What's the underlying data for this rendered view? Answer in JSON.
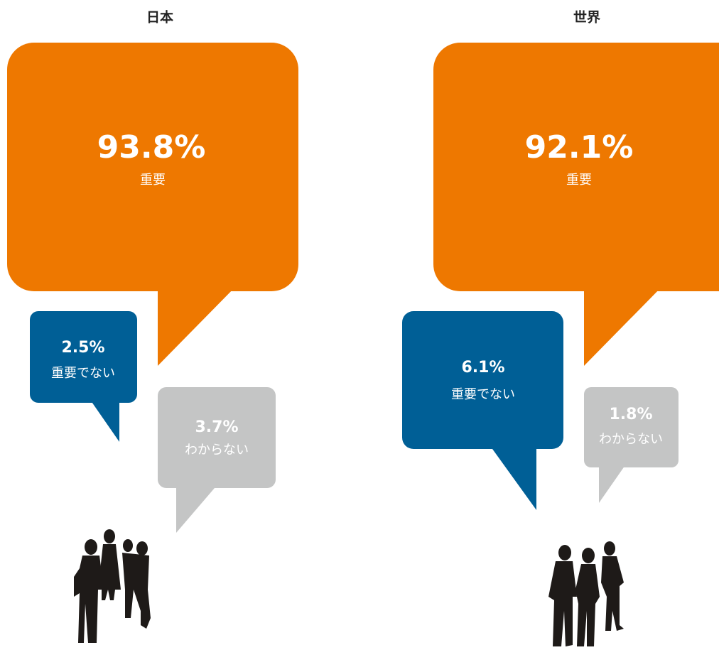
{
  "panels": [
    {
      "title": "日本",
      "important": {
        "value": "93.8%",
        "label": "重要"
      },
      "not_important": {
        "value": "2.5%",
        "label": "重要でない"
      },
      "unknown": {
        "value": "3.7%",
        "label": "わからない"
      }
    },
    {
      "title": "世界",
      "important": {
        "value": "92.1%",
        "label": "重要"
      },
      "not_important": {
        "value": "6.1%",
        "label": "重要でない"
      },
      "unknown": {
        "value": "1.8%",
        "label": "わからない"
      }
    }
  ]
}
